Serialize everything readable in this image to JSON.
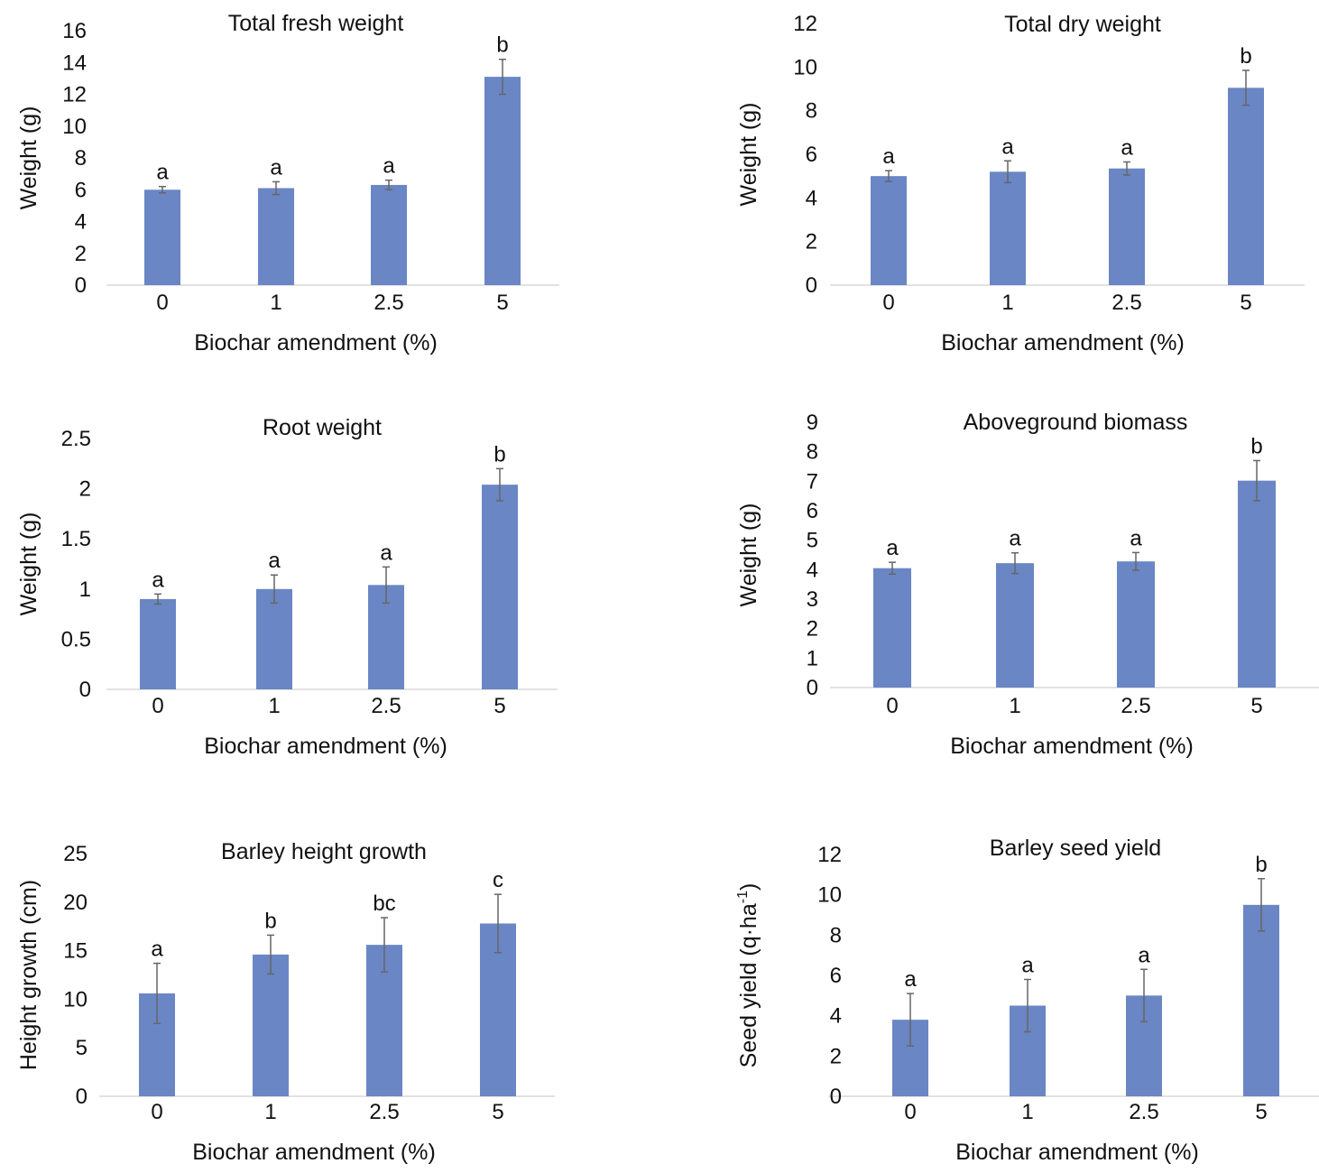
{
  "chart_data": [
    {
      "type": "bar",
      "title": "Total fresh weight",
      "xlabel": "Biochar amendment (%)",
      "ylabel": "Weight (g)",
      "categories": [
        "0",
        "1",
        "2.5",
        "5"
      ],
      "values": [
        6.0,
        6.1,
        6.3,
        13.1
      ],
      "errors": [
        0.2,
        0.4,
        0.3,
        1.1
      ],
      "letters": [
        "a",
        "a",
        "a",
        "b"
      ],
      "ylim": [
        0,
        16
      ],
      "yticks": [
        "0",
        "2",
        "4",
        "6",
        "8",
        "10",
        "12",
        "14",
        "16"
      ]
    },
    {
      "type": "bar",
      "title": "Total dry weight",
      "xlabel": "Biochar amendment (%)",
      "ylabel": "Weight (g)",
      "categories": [
        "0",
        "1",
        "2.5",
        "5"
      ],
      "values": [
        5.0,
        5.2,
        5.35,
        9.05
      ],
      "errors": [
        0.25,
        0.5,
        0.3,
        0.8
      ],
      "letters": [
        "a",
        "a",
        "a",
        "b"
      ],
      "ylim": [
        0,
        12
      ],
      "yticks": [
        "0",
        "2",
        "4",
        "6",
        "8",
        "10",
        "12"
      ]
    },
    {
      "type": "bar",
      "title": "Root weight",
      "xlabel": "Biochar amendment (%)",
      "ylabel": "Weight (g)",
      "categories": [
        "0",
        "1",
        "2.5",
        "5"
      ],
      "values": [
        0.9,
        1.0,
        1.04,
        2.04
      ],
      "errors": [
        0.05,
        0.14,
        0.18,
        0.16
      ],
      "letters": [
        "a",
        "a",
        "a",
        "b"
      ],
      "ylim": [
        0,
        2.5
      ],
      "yticks": [
        "0",
        "0.5",
        "1",
        "1.5",
        "2",
        "2.5"
      ]
    },
    {
      "type": "bar",
      "title": "Aboveground biomass",
      "xlabel": "Biochar amendment (%)",
      "ylabel": "Weight (g)",
      "categories": [
        "0",
        "1",
        "2.5",
        "5"
      ],
      "values": [
        4.05,
        4.22,
        4.28,
        7.02
      ],
      "errors": [
        0.2,
        0.35,
        0.3,
        0.68
      ],
      "letters": [
        "a",
        "a",
        "a",
        "b"
      ],
      "ylim": [
        0,
        9
      ],
      "yticks": [
        "0",
        "1",
        "2",
        "3",
        "4",
        "5",
        "6",
        "7",
        "8",
        "9"
      ]
    },
    {
      "type": "bar",
      "title": "Barley height growth",
      "xlabel": "Biochar amendment (%)",
      "ylabel": "Height growth (cm)",
      "categories": [
        "0",
        "1",
        "2.5",
        "5"
      ],
      "values": [
        10.6,
        14.6,
        15.6,
        17.8
      ],
      "errors": [
        3.1,
        2.0,
        2.8,
        3.0
      ],
      "letters": [
        "a",
        "b",
        "bc",
        "c"
      ],
      "ylim": [
        0,
        25
      ],
      "yticks": [
        "0",
        "5",
        "10",
        "15",
        "20",
        "25"
      ]
    },
    {
      "type": "bar",
      "title": "Barley seed yield",
      "xlabel": "Biochar amendment (%)",
      "ylabel": "Seed yield (q·ha",
      "ylabel_superscript": "-1",
      "ylabel_suffix": ")",
      "categories": [
        "0",
        "1",
        "2.5",
        "5"
      ],
      "values": [
        3.8,
        4.5,
        5.0,
        9.5
      ],
      "errors": [
        1.3,
        1.3,
        1.3,
        1.3
      ],
      "letters": [
        "a",
        "a",
        "a",
        "b"
      ],
      "ylim": [
        0,
        12
      ],
      "yticks": [
        "0",
        "2",
        "4",
        "6",
        "8",
        "10",
        "12"
      ]
    }
  ]
}
